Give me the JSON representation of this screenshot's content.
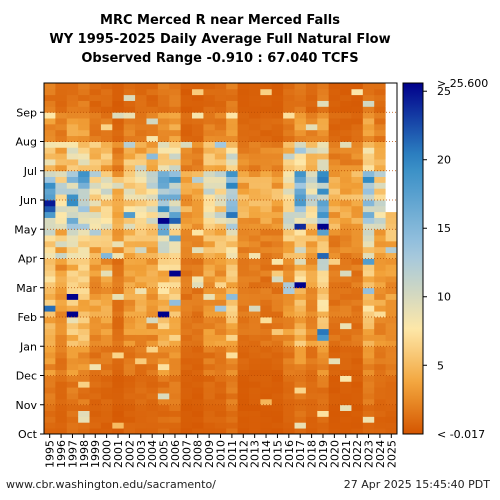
{
  "header": {
    "title_line1": "MRC Merced R near Merced Falls",
    "title_line2": "WY 1995-2025 Daily Average Full Natural Flow",
    "title_line3": "Observed Range -0.910 : 67.040 TCFS"
  },
  "footer": {
    "credit": "www.cbr.washington.edu/sacramento/",
    "timestamp": "27 Apr 2025 15:45:40 PDT"
  },
  "colors": {
    "low": "#d45500",
    "mid": "#f2a33a",
    "pale": "#fde7a8",
    "light_blue": "#9fc6e0",
    "blue": "#2f8ac4",
    "high": "#00008b",
    "missing": "#ffffff",
    "grid": "#b84a00"
  },
  "chart_data": {
    "type": "heatmap",
    "x": [
      "1995",
      "1996",
      "1997",
      "1998",
      "1999",
      "2000",
      "2001",
      "2002",
      "2003",
      "2004",
      "2005",
      "2006",
      "2007",
      "2008",
      "2009",
      "2010",
      "2011",
      "2012",
      "2013",
      "2014",
      "2015",
      "2016",
      "2017",
      "2018",
      "2019",
      "2020",
      "2021",
      "2022",
      "2023",
      "2024",
      "2025"
    ],
    "y": [
      "Oct",
      "Nov",
      "Dec",
      "Jan",
      "Feb",
      "Mar",
      "Apr",
      "May",
      "Jun",
      "Jul",
      "Aug",
      "Sep"
    ],
    "colorbar_ticks": [
      {
        "value": 5,
        "label": "5"
      },
      {
        "value": 10,
        "label": "10"
      },
      {
        "value": 15,
        "label": "15"
      },
      {
        "value": 20,
        "label": "20"
      },
      {
        "value": 25,
        "label": "25"
      }
    ],
    "colorbar_max_label": "> 25.600",
    "colorbar_min_label": "< -0.017",
    "colorbar_range": [
      -0.017,
      25.6
    ],
    "observed_range": [
      -0.91,
      67.04
    ],
    "units": "TCFS",
    "missing": {
      "year": "2025",
      "from_month": "May"
    },
    "wet_years": [
      "1995",
      "1997",
      "1998",
      "2005",
      "2006",
      "2011",
      "2017",
      "2019",
      "2023"
    ],
    "dry_years": [
      "2001",
      "2007",
      "2008",
      "2012",
      "2013",
      "2014",
      "2015",
      "2020",
      "2021",
      "2022"
    ],
    "grid": true
  }
}
